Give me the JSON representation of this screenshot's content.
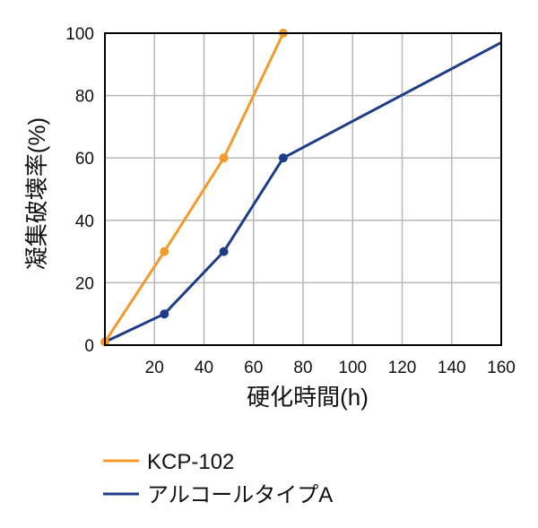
{
  "chart_data": {
    "type": "line",
    "title": "",
    "xlabel": "硬化時間(h)",
    "ylabel": "凝集破壊率(%)",
    "xlim": [
      0,
      160
    ],
    "ylim": [
      0,
      100
    ],
    "x_ticks": [
      20,
      40,
      60,
      80,
      100,
      120,
      140,
      160
    ],
    "y_ticks": [
      0,
      20,
      40,
      60,
      80,
      100
    ],
    "grid": true,
    "legend_position": "bottom",
    "series": [
      {
        "name": "KCP-102",
        "color": "#F39A2B",
        "x": [
          0,
          24,
          48,
          72
        ],
        "y": [
          1,
          30,
          60,
          100
        ],
        "markers": [
          true,
          true,
          true,
          true
        ]
      },
      {
        "name": "アルコールタイプA",
        "color": "#1F3C88",
        "x": [
          0,
          24,
          48,
          72,
          160
        ],
        "y": [
          1,
          10,
          30,
          60,
          97
        ],
        "markers": [
          false,
          true,
          true,
          true,
          false
        ]
      }
    ]
  },
  "colors": {
    "grid": "#B8B8B8",
    "axis": "#000000",
    "text": "#111111"
  }
}
